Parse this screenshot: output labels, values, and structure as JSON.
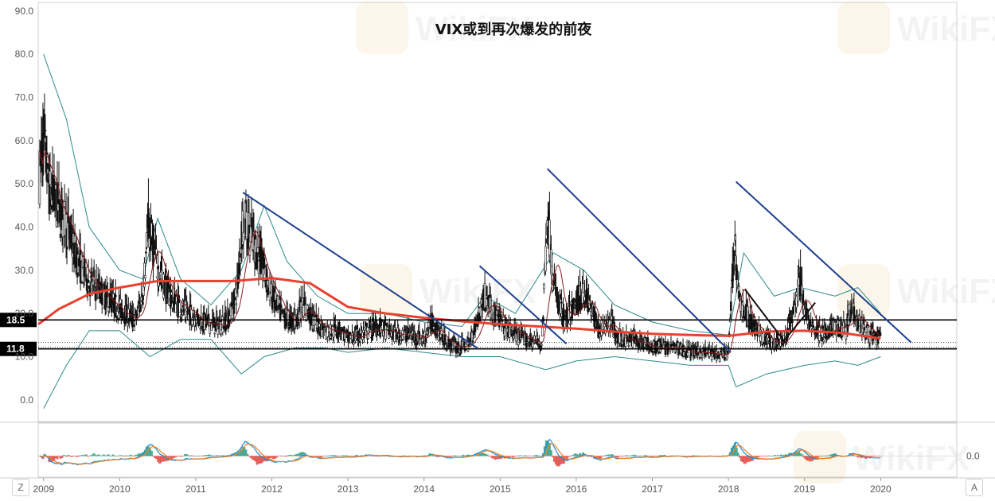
{
  "chart_data": {
    "type": "candlestick",
    "title": "VIX或到再次爆发的前夜",
    "y_axis": {
      "ticks": [
        "90.0",
        "80.0",
        "70.0",
        "60.0",
        "50.0",
        "40.0",
        "30.0",
        "20.0",
        "10.0",
        "0.0"
      ],
      "tick_values": [
        90,
        80,
        70,
        60,
        50,
        40,
        30,
        20,
        10,
        0
      ],
      "range": [
        -5,
        92
      ]
    },
    "x_axis": {
      "ticks": [
        "2009",
        "2010",
        "2011",
        "2012",
        "2013",
        "2014",
        "2015",
        "2016",
        "2017",
        "2018",
        "2019",
        "2020"
      ],
      "tick_values": [
        2009,
        2010,
        2011,
        2012,
        2013,
        2014,
        2015,
        2016,
        2017,
        2018,
        2019,
        2020
      ],
      "range": [
        2008.93,
        2021.0
      ]
    },
    "levels": [
      {
        "label": "18.5",
        "value": 18.5,
        "style": "solid"
      },
      {
        "label": "11.8",
        "value": 11.8,
        "style": "solid"
      }
    ],
    "dotted_levels": [
      12.2,
      13.3
    ],
    "watermark": "WikiFX",
    "price_anchors": [
      [
        2008.95,
        52
      ],
      [
        2009.0,
        60
      ],
      [
        2009.08,
        48
      ],
      [
        2009.2,
        44
      ],
      [
        2009.3,
        40
      ],
      [
        2009.45,
        32
      ],
      [
        2009.6,
        27
      ],
      [
        2009.8,
        24
      ],
      [
        2010.0,
        21
      ],
      [
        2010.2,
        18
      ],
      [
        2010.3,
        24
      ],
      [
        2010.38,
        40
      ],
      [
        2010.5,
        30
      ],
      [
        2010.62,
        25
      ],
      [
        2010.75,
        22
      ],
      [
        2010.9,
        20
      ],
      [
        2011.1,
        18
      ],
      [
        2011.3,
        17
      ],
      [
        2011.45,
        19
      ],
      [
        2011.55,
        26
      ],
      [
        2011.62,
        42
      ],
      [
        2011.72,
        38
      ],
      [
        2011.85,
        32
      ],
      [
        2012.0,
        24
      ],
      [
        2012.15,
        19
      ],
      [
        2012.3,
        18
      ],
      [
        2012.4,
        22
      ],
      [
        2012.55,
        18
      ],
      [
        2012.7,
        16
      ],
      [
        2012.9,
        16
      ],
      [
        2013.0,
        14
      ],
      [
        2013.2,
        15
      ],
      [
        2013.4,
        17
      ],
      [
        2013.6,
        15
      ],
      [
        2013.8,
        15
      ],
      [
        2014.0,
        14
      ],
      [
        2014.1,
        18
      ],
      [
        2014.3,
        13
      ],
      [
        2014.45,
        12
      ],
      [
        2014.6,
        13
      ],
      [
        2014.8,
        24
      ],
      [
        2014.95,
        19
      ],
      [
        2015.1,
        16
      ],
      [
        2015.3,
        14
      ],
      [
        2015.55,
        13
      ],
      [
        2015.62,
        44
      ],
      [
        2015.7,
        26
      ],
      [
        2015.85,
        18
      ],
      [
        2016.0,
        22
      ],
      [
        2016.1,
        25
      ],
      [
        2016.3,
        16
      ],
      [
        2016.45,
        18
      ],
      [
        2016.55,
        14
      ],
      [
        2016.75,
        14
      ],
      [
        2016.9,
        13
      ],
      [
        2017.1,
        12
      ],
      [
        2017.3,
        12
      ],
      [
        2017.5,
        11
      ],
      [
        2017.7,
        11
      ],
      [
        2017.9,
        10
      ],
      [
        2018.0,
        11
      ],
      [
        2018.08,
        37
      ],
      [
        2018.15,
        22
      ],
      [
        2018.3,
        18
      ],
      [
        2018.45,
        14
      ],
      [
        2018.6,
        13
      ],
      [
        2018.75,
        14
      ],
      [
        2018.88,
        22
      ],
      [
        2018.95,
        28
      ],
      [
        2019.0,
        20
      ],
      [
        2019.15,
        16
      ],
      [
        2019.3,
        15
      ],
      [
        2019.4,
        17
      ],
      [
        2019.55,
        16
      ],
      [
        2019.6,
        22
      ],
      [
        2019.75,
        17
      ],
      [
        2019.85,
        15
      ],
      [
        2020.0,
        14
      ]
    ],
    "trendlines": [
      {
        "color": "#1e3f8f",
        "points": [
          [
            2011.62,
            48
          ],
          [
            2014.7,
            12
          ]
        ]
      },
      {
        "color": "#1e3f8f",
        "points": [
          [
            2014.73,
            31
          ],
          [
            2015.87,
            13
          ]
        ]
      },
      {
        "color": "#1e3f8f",
        "points": [
          [
            2015.62,
            53.5
          ],
          [
            2018.03,
            11
          ]
        ]
      },
      {
        "color": "#1e3f8f",
        "points": [
          [
            2018.1,
            50.5
          ],
          [
            2020.4,
            13.3
          ]
        ]
      },
      {
        "color": "#111111",
        "points": [
          [
            2018.22,
            25.5
          ],
          [
            2018.75,
            13.2
          ]
        ]
      },
      {
        "color": "#111111",
        "points": [
          [
            2018.72,
            13.5
          ],
          [
            2019.14,
            22.5
          ]
        ]
      }
    ],
    "ma_long": [
      [
        2008.93,
        17.5
      ],
      [
        2009.2,
        21
      ],
      [
        2009.6,
        24.5
      ],
      [
        2010.0,
        26
      ],
      [
        2010.5,
        27.5
      ],
      [
        2011.0,
        27.5
      ],
      [
        2011.5,
        27.5
      ],
      [
        2012.0,
        28.2
      ],
      [
        2012.5,
        27
      ],
      [
        2013.0,
        21.5
      ],
      [
        2013.5,
        20
      ],
      [
        2014.0,
        19
      ],
      [
        2014.5,
        18.2
      ],
      [
        2015.0,
        17.5
      ],
      [
        2015.5,
        17
      ],
      [
        2016.0,
        16.5
      ],
      [
        2016.5,
        15.8
      ],
      [
        2017.0,
        15.3
      ],
      [
        2017.5,
        15
      ],
      [
        2018.0,
        14.8
      ],
      [
        2018.5,
        15.8
      ],
      [
        2019.0,
        16
      ],
      [
        2019.5,
        15.5
      ],
      [
        2020.0,
        14.2
      ]
    ],
    "bands_upper": [
      [
        2009.0,
        80
      ],
      [
        2009.3,
        65
      ],
      [
        2009.6,
        40
      ],
      [
        2010.0,
        30
      ],
      [
        2010.3,
        28
      ],
      [
        2010.5,
        42
      ],
      [
        2010.8,
        28
      ],
      [
        2011.2,
        22
      ],
      [
        2011.6,
        30
      ],
      [
        2011.9,
        45
      ],
      [
        2012.2,
        32
      ],
      [
        2012.6,
        24
      ],
      [
        2013.0,
        20
      ],
      [
        2013.5,
        20
      ],
      [
        2014.0,
        18
      ],
      [
        2014.5,
        17
      ],
      [
        2014.8,
        24
      ],
      [
        2015.2,
        20
      ],
      [
        2015.7,
        34
      ],
      [
        2016.1,
        30
      ],
      [
        2016.5,
        22
      ],
      [
        2017.0,
        18
      ],
      [
        2017.5,
        16
      ],
      [
        2018.0,
        15
      ],
      [
        2018.2,
        34
      ],
      [
        2018.6,
        24
      ],
      [
        2018.95,
        26
      ],
      [
        2019.4,
        24
      ],
      [
        2019.7,
        26
      ],
      [
        2020.0,
        20
      ]
    ],
    "bands_lower": [
      [
        2009.0,
        -2
      ],
      [
        2009.3,
        8
      ],
      [
        2009.6,
        16
      ],
      [
        2010.0,
        16
      ],
      [
        2010.4,
        10
      ],
      [
        2010.8,
        14
      ],
      [
        2011.2,
        14
      ],
      [
        2011.6,
        6
      ],
      [
        2011.9,
        10
      ],
      [
        2012.3,
        12
      ],
      [
        2012.7,
        12
      ],
      [
        2013.0,
        11
      ],
      [
        2013.5,
        12
      ],
      [
        2014.0,
        11
      ],
      [
        2014.5,
        10
      ],
      [
        2015.0,
        10
      ],
      [
        2015.6,
        7
      ],
      [
        2016.0,
        9
      ],
      [
        2016.5,
        10
      ],
      [
        2017.0,
        9
      ],
      [
        2017.5,
        8
      ],
      [
        2018.0,
        8
      ],
      [
        2018.1,
        3
      ],
      [
        2018.5,
        6
      ],
      [
        2019.0,
        8
      ],
      [
        2019.4,
        9
      ],
      [
        2019.7,
        8
      ],
      [
        2020.0,
        10
      ]
    ],
    "lower_panel": {
      "type": "macd",
      "ticks": [
        "0.0"
      ],
      "tick_values": [
        0
      ],
      "range": [
        -9,
        14
      ]
    },
    "colors": {
      "candle": "#111111",
      "ma_long": "#e8412f",
      "ma_short": "#8b1a1a",
      "bands": "#2a8a8a",
      "macd_line": "#1f8fd0",
      "signal_line": "#f0822a",
      "hist_pos": "#3aa08a",
      "hist_neg": "#e0504a",
      "level_box": "#000000",
      "grid": "#e6e6e6"
    }
  },
  "controls": {
    "left_button": "Z",
    "right_button": "A"
  }
}
